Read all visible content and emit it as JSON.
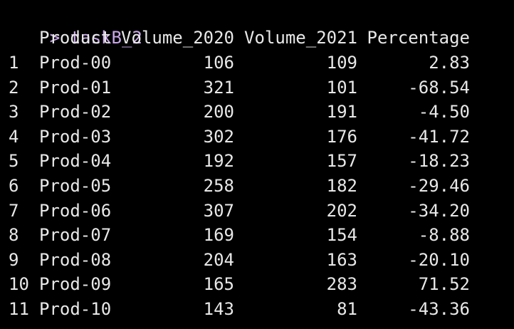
{
  "console": {
    "prompt_symbol": ">",
    "command": "taskB_2"
  },
  "table": {
    "headers": [
      "Product",
      "Volume_2020",
      "Volume_2021",
      "Percentage"
    ],
    "rows": [
      {
        "index": "1",
        "product": "Prod-00",
        "v2020": "106",
        "v2021": "109",
        "pct": "2.83"
      },
      {
        "index": "2",
        "product": "Prod-01",
        "v2020": "321",
        "v2021": "101",
        "pct": "-68.54"
      },
      {
        "index": "3",
        "product": "Prod-02",
        "v2020": "200",
        "v2021": "191",
        "pct": "-4.50"
      },
      {
        "index": "4",
        "product": "Prod-03",
        "v2020": "302",
        "v2021": "176",
        "pct": "-41.72"
      },
      {
        "index": "5",
        "product": "Prod-04",
        "v2020": "192",
        "v2021": "157",
        "pct": "-18.23"
      },
      {
        "index": "6",
        "product": "Prod-05",
        "v2020": "258",
        "v2021": "182",
        "pct": "-29.46"
      },
      {
        "index": "7",
        "product": "Prod-06",
        "v2020": "307",
        "v2021": "202",
        "pct": "-34.20"
      },
      {
        "index": "8",
        "product": "Prod-07",
        "v2020": "169",
        "v2021": "154",
        "pct": "-8.88"
      },
      {
        "index": "9",
        "product": "Prod-08",
        "v2020": "204",
        "v2021": "163",
        "pct": "-20.10"
      },
      {
        "index": "10",
        "product": "Prod-09",
        "v2020": "165",
        "v2021": "283",
        "pct": "71.52"
      },
      {
        "index": "11",
        "product": "Prod-10",
        "v2020": "143",
        "v2021": "81",
        "pct": "-43.36"
      }
    ]
  },
  "colors": {
    "background": "#000000",
    "text": "#e8e8e8",
    "prompt": "#c9a7e8"
  }
}
